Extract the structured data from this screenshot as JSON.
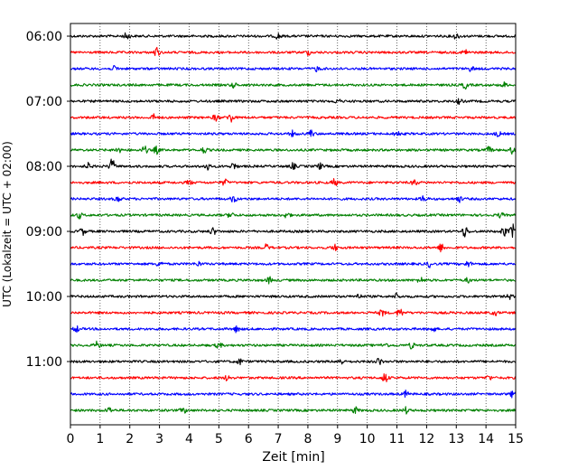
{
  "chart_data": {
    "type": "line",
    "subtype": "helicorder",
    "xlabel": "Zeit  [min]",
    "ylabel": "UTC (Lokalzeit = UTC + 02:00)",
    "xlim": [
      0,
      15
    ],
    "x_ticks": [
      "0",
      "1",
      "2",
      "3",
      "4",
      "5",
      "6",
      "7",
      "8",
      "9",
      "10",
      "11",
      "12",
      "13",
      "14",
      "15"
    ],
    "y_ticks": [
      "06:00",
      "07:00",
      "08:00",
      "09:00",
      "10:00",
      "11:00"
    ],
    "grid": "vertical dotted lines at every minute",
    "trace_colors": [
      "#000000",
      "#ff0000",
      "#0000ff",
      "#008000"
    ],
    "lines_per_hour": 4,
    "line_duration_min": 15,
    "traces": [
      {
        "start": "06:00",
        "color": "#000000",
        "bursts": [
          [
            1.9,
            3
          ],
          [
            7.0,
            2.5
          ],
          [
            13.0,
            2.5
          ]
        ]
      },
      {
        "start": "06:15",
        "color": "#ff0000",
        "bursts": [
          [
            2.9,
            4
          ],
          [
            8.0,
            2
          ],
          [
            13.3,
            2.5
          ]
        ]
      },
      {
        "start": "06:30",
        "color": "#0000ff",
        "bursts": [
          [
            1.5,
            2
          ],
          [
            8.3,
            2
          ],
          [
            13.5,
            2
          ]
        ]
      },
      {
        "start": "06:45",
        "color": "#008000",
        "bursts": [
          [
            5.5,
            2
          ],
          [
            13.3,
            3
          ],
          [
            14.6,
            2
          ]
        ]
      },
      {
        "start": "07:00",
        "color": "#000000",
        "bursts": [
          [
            9.0,
            2
          ],
          [
            13.1,
            2
          ]
        ]
      },
      {
        "start": "07:15",
        "color": "#ff0000",
        "bursts": [
          [
            2.8,
            2.5
          ],
          [
            4.9,
            3
          ],
          [
            5.4,
            4
          ]
        ]
      },
      {
        "start": "07:30",
        "color": "#0000ff",
        "bursts": [
          [
            7.5,
            2.5
          ],
          [
            8.1,
            3
          ],
          [
            11.0,
            2.5
          ],
          [
            14.4,
            2
          ]
        ]
      },
      {
        "start": "07:45",
        "color": "#008000",
        "bursts": [
          [
            1.6,
            2.5
          ],
          [
            2.5,
            3
          ],
          [
            2.9,
            3
          ],
          [
            4.5,
            2.5
          ],
          [
            14.1,
            2.5
          ],
          [
            14.9,
            3
          ]
        ]
      },
      {
        "start": "08:00",
        "color": "#000000",
        "bursts": [
          [
            0.6,
            2.5
          ],
          [
            1.4,
            6
          ],
          [
            4.6,
            3
          ],
          [
            5.5,
            3
          ],
          [
            7.5,
            2.5
          ],
          [
            8.4,
            2.5
          ]
        ]
      },
      {
        "start": "08:15",
        "color": "#ff0000",
        "bursts": [
          [
            4.0,
            2
          ],
          [
            5.2,
            2.5
          ],
          [
            8.9,
            3
          ],
          [
            11.6,
            2.5
          ]
        ]
      },
      {
        "start": "08:30",
        "color": "#0000ff",
        "bursts": [
          [
            1.6,
            2.5
          ],
          [
            5.5,
            3
          ],
          [
            11.9,
            2.5
          ],
          [
            13.1,
            2.5
          ]
        ]
      },
      {
        "start": "08:45",
        "color": "#008000",
        "bursts": [
          [
            0.3,
            2.5
          ],
          [
            5.4,
            2.5
          ],
          [
            7.3,
            2.5
          ],
          [
            14.5,
            2
          ]
        ]
      },
      {
        "start": "09:00",
        "color": "#000000",
        "bursts": [
          [
            0.4,
            3
          ],
          [
            4.8,
            3
          ],
          [
            13.3,
            5
          ],
          [
            14.6,
            4
          ],
          [
            14.9,
            6
          ]
        ]
      },
      {
        "start": "09:15",
        "color": "#ff0000",
        "bursts": [
          [
            6.6,
            2.5
          ],
          [
            8.9,
            2.5
          ],
          [
            12.5,
            3.5
          ]
        ]
      },
      {
        "start": "09:30",
        "color": "#0000ff",
        "bursts": [
          [
            3.0,
            2.5
          ],
          [
            4.3,
            2
          ],
          [
            12.1,
            2.5
          ],
          [
            13.4,
            2.5
          ]
        ]
      },
      {
        "start": "09:45",
        "color": "#008000",
        "bursts": [
          [
            6.7,
            2.5
          ],
          [
            11.8,
            2.5
          ],
          [
            13.4,
            2
          ]
        ]
      },
      {
        "start": "10:00",
        "color": "#000000",
        "bursts": [
          [
            9.7,
            2
          ],
          [
            11.0,
            2.5
          ],
          [
            14.8,
            2
          ]
        ]
      },
      {
        "start": "10:15",
        "color": "#ff0000",
        "bursts": [
          [
            10.5,
            3
          ],
          [
            11.1,
            4
          ],
          [
            14.3,
            2
          ]
        ]
      },
      {
        "start": "10:30",
        "color": "#0000ff",
        "bursts": [
          [
            0.2,
            2.5
          ],
          [
            5.6,
            2.5
          ],
          [
            12.2,
            2.5
          ]
        ]
      },
      {
        "start": "10:45",
        "color": "#008000",
        "bursts": [
          [
            0.9,
            3
          ],
          [
            5.0,
            2.5
          ],
          [
            10.6,
            2.5
          ],
          [
            11.5,
            2.5
          ]
        ]
      },
      {
        "start": "11:00",
        "color": "#000000",
        "bursts": [
          [
            5.7,
            2.5
          ],
          [
            9.1,
            2.5
          ],
          [
            10.4,
            3
          ]
        ]
      },
      {
        "start": "11:15",
        "color": "#ff0000",
        "bursts": [
          [
            5.3,
            2.5
          ],
          [
            10.6,
            4.5
          ],
          [
            14.1,
            2
          ]
        ]
      },
      {
        "start": "11:30",
        "color": "#0000ff",
        "bursts": [
          [
            11.3,
            2.5
          ],
          [
            14.9,
            2.5
          ]
        ]
      },
      {
        "start": "11:45",
        "color": "#008000",
        "bursts": [
          [
            1.3,
            2.5
          ],
          [
            3.8,
            2.5
          ],
          [
            9.6,
            2.5
          ],
          [
            11.3,
            2.5
          ]
        ]
      }
    ]
  }
}
